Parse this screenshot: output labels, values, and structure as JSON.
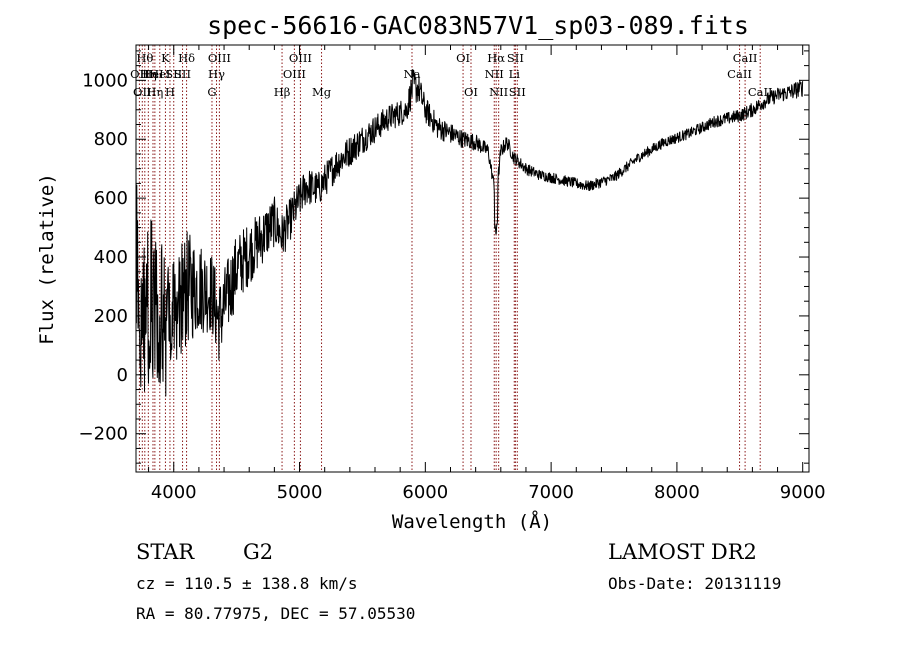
{
  "chart_data": {
    "type": "line",
    "title": "spec-56616-GAC083N57V1_sp03-089.fits",
    "xlabel": "Wavelength (Å)",
    "ylabel": "Flux (relative)",
    "xlim": [
      3700,
      9050
    ],
    "ylim": [
      -330,
      1120
    ],
    "xticks": [
      4000,
      5000,
      6000,
      7000,
      8000,
      9000
    ],
    "xtick_labels": [
      "4000",
      "5000",
      "6000",
      "7000",
      "8000",
      "9000"
    ],
    "yticks": [
      -200,
      0,
      200,
      400,
      600,
      800,
      1000
    ],
    "ytick_labels": [
      "−200",
      "0",
      "200",
      "400",
      "600",
      "800",
      "1000"
    ],
    "grid": false,
    "line_color": "#000000",
    "marker_line_color": "#8b1a1a",
    "spectrum_anchors": {
      "x": [
        3700,
        3760,
        3820,
        3880,
        3930,
        3970,
        4020,
        4100,
        4200,
        4300,
        4360,
        4500,
        4650,
        4800,
        4860,
        4950,
        5050,
        5150,
        5300,
        5500,
        5700,
        5850,
        5900,
        5950,
        6000,
        6100,
        6200,
        6300,
        6400,
        6500,
        6563,
        6600,
        6650,
        6700,
        6800,
        6900,
        7000,
        7200,
        7300,
        7500,
        7700,
        7900,
        8100,
        8300,
        8500,
        8600,
        8700,
        8800,
        8900,
        8960,
        9000
      ],
      "y": [
        380,
        180,
        260,
        230,
        150,
        220,
        240,
        290,
        300,
        280,
        180,
        360,
        440,
        520,
        470,
        550,
        640,
        630,
        720,
        800,
        870,
        900,
        980,
        970,
        900,
        840,
        820,
        800,
        790,
        760,
        600,
        760,
        790,
        740,
        700,
        680,
        670,
        650,
        640,
        670,
        740,
        790,
        820,
        860,
        880,
        900,
        930,
        950,
        960,
        970,
        975
      ],
      "noise": [
        350,
        320,
        280,
        260,
        250,
        240,
        220,
        200,
        160,
        140,
        140,
        120,
        100,
        85,
        80,
        70,
        65,
        60,
        55,
        50,
        45,
        45,
        60,
        50,
        45,
        40,
        35,
        30,
        28,
        25,
        20,
        25,
        25,
        22,
        20,
        18,
        18,
        18,
        18,
        18,
        18,
        18,
        18,
        20,
        22,
        24,
        25,
        26,
        28,
        30,
        30
      ]
    },
    "lines": [
      {
        "x": 3727,
        "labels": [
          "OII"
        ],
        "row": 1
      },
      {
        "x": 3750,
        "labels": [
          "OII"
        ],
        "row": 2
      },
      {
        "x": 3770,
        "labels": [
          "Hθ"
        ],
        "row": 0
      },
      {
        "x": 3798,
        "labels": [
          "Hη"
        ],
        "row": 1
      },
      {
        "x": 3835,
        "labels": [
          "HeI"
        ],
        "row": 1
      },
      {
        "x": 3850,
        "labels": [
          "Hη"
        ],
        "row": 2
      },
      {
        "x": 3889,
        "labels": [
          "HeI"
        ],
        "row": 1
      },
      {
        "x": 3934,
        "labels": [
          "K"
        ],
        "row": 0
      },
      {
        "x": 3970,
        "labels": [
          "H"
        ],
        "row": 2
      },
      {
        "x": 4000,
        "labels": [
          "SII"
        ],
        "row": 1
      },
      {
        "x": 4070,
        "labels": [
          "SII"
        ],
        "row": 1
      },
      {
        "x": 4102,
        "labels": [
          "Hδ"
        ],
        "row": 0
      },
      {
        "x": 4304,
        "labels": [
          "G"
        ],
        "row": 2
      },
      {
        "x": 4340,
        "labels": [
          "Hγ"
        ],
        "row": 1
      },
      {
        "x": 4363,
        "labels": [
          "OIII"
        ],
        "row": 0
      },
      {
        "x": 4861,
        "labels": [
          "Hβ"
        ],
        "row": 2
      },
      {
        "x": 4959,
        "labels": [
          "OIII"
        ],
        "row": 1
      },
      {
        "x": 5007,
        "labels": [
          "OIII"
        ],
        "row": 0
      },
      {
        "x": 5175,
        "labels": [
          "Mg"
        ],
        "row": 2
      },
      {
        "x": 5894,
        "labels": [
          "Na"
        ],
        "row": 1
      },
      {
        "x": 6300,
        "labels": [
          "OI"
        ],
        "row": 0
      },
      {
        "x": 6363,
        "labels": [
          "OI"
        ],
        "row": 2
      },
      {
        "x": 6548,
        "labels": [
          "NII"
        ],
        "row": 1
      },
      {
        "x": 6563,
        "labels": [
          "Hα"
        ],
        "row": 0
      },
      {
        "x": 6583,
        "labels": [
          "NII"
        ],
        "row": 2
      },
      {
        "x": 6707,
        "labels": [
          "Li"
        ],
        "row": 1
      },
      {
        "x": 6716,
        "labels": [
          "SII"
        ],
        "row": 0
      },
      {
        "x": 6731,
        "labels": [
          "SII"
        ],
        "row": 2
      },
      {
        "x": 8498,
        "labels": [
          "CaII"
        ],
        "row": 1
      },
      {
        "x": 8542,
        "labels": [
          "CaII"
        ],
        "row": 0
      },
      {
        "x": 8662,
        "labels": [
          "CaII"
        ],
        "row": 2
      }
    ]
  },
  "info": {
    "class_text": "STAR",
    "subclass_text": "G2",
    "cz_text": "cz = 110.5 ± 138.8 km/s",
    "radec_text": "RA =  80.77975, DEC =  57.05530",
    "survey_text": "LAMOST DR2",
    "obsdate_text": "Obs-Date: 20131119"
  }
}
